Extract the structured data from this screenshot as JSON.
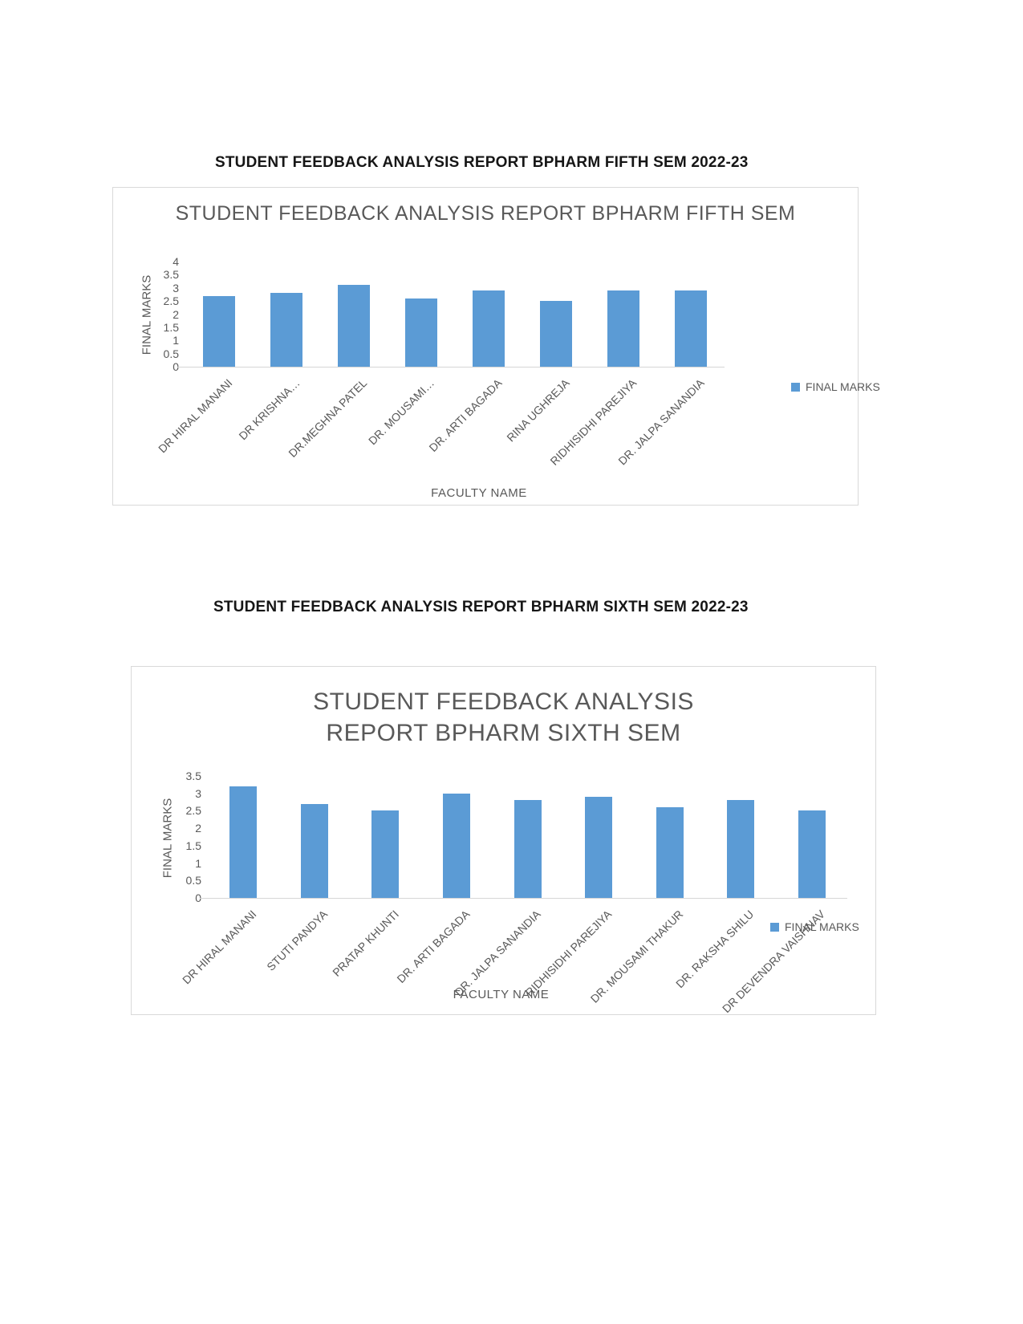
{
  "page": {
    "heading_fifth": "STUDENT FEEDBACK ANALYSIS REPORT BPHARM FIFTH SEM 2022-23",
    "heading_sixth": "STUDENT FEEDBACK ANALYSIS REPORT BPHARM SIXTH SEM 2022-23"
  },
  "colors": {
    "bar": "#5B9BD5",
    "chart_text": "#595959",
    "heading_text": "#161616",
    "chart_border": "#D9D9D9",
    "axis_line": "#D6D6D6"
  },
  "chart_data": [
    {
      "type": "bar",
      "title": "STUDENT FEEDBACK ANALYSIS REPORT BPHARM  FIFTH SEM",
      "xlabel": "FACULTY NAME",
      "ylabel": "FINAL MARKS",
      "legend_label": "FINAL MARKS",
      "legend_position": "right",
      "grid": false,
      "ylim": [
        0,
        4
      ],
      "yticks": [
        0,
        0.5,
        1,
        1.5,
        2,
        2.5,
        3,
        3.5,
        4
      ],
      "categories": [
        "DR HIRAL MANANI",
        "DR KRISHNA…",
        "DR.MEGHNA PATEL",
        "DR. MOUSAMI…",
        "DR. ARTI BAGADA",
        "RINA UGHREJA",
        "RIDHISIDHI PAREJIYA",
        "DR. JALPA SANANDIA"
      ],
      "values": [
        2.7,
        2.8,
        3.1,
        2.6,
        2.9,
        2.5,
        2.9,
        2.9
      ]
    },
    {
      "type": "bar",
      "title": "STUDENT FEEDBACK ANALYSIS REPORT BPHARM  SIXTH SEM",
      "xlabel": "FACULTY NAME",
      "ylabel": "FINAL MARKS",
      "legend_label": "FINAL MARKS",
      "legend_position": "right",
      "grid": false,
      "ylim": [
        0,
        3.5
      ],
      "yticks": [
        0,
        0.5,
        1,
        1.5,
        2,
        2.5,
        3,
        3.5
      ],
      "categories": [
        "DR HIRAL MANANI",
        "STUTI PANDYA",
        "PRATAP KHUNTI",
        "DR. ARTI BAGADA",
        "DR. JALPA SANANDIA",
        "RIDHISIDHI PAREJIYA",
        "DR. MOUSAMI THAKUR",
        "DR. RAKSHA SHILU",
        "DR DEVENDRA VAISHNAV"
      ],
      "values": [
        3.2,
        2.7,
        2.5,
        3.0,
        2.8,
        2.9,
        2.6,
        2.8,
        2.5
      ]
    }
  ]
}
